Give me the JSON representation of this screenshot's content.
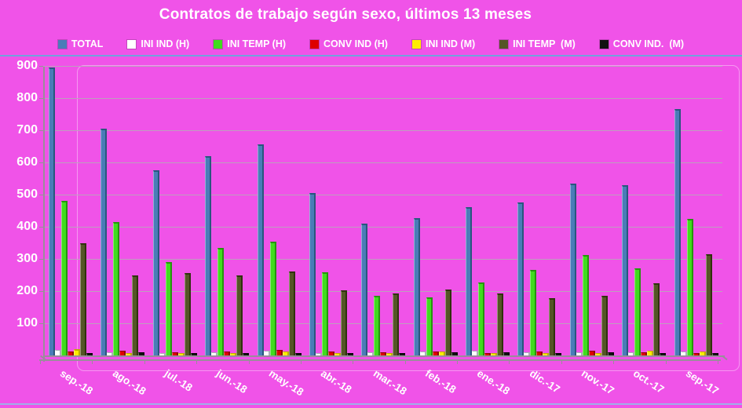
{
  "title": "Contratos de trabajo según sexo, últimos 13 meses",
  "colors": {
    "background": "#F053E8",
    "text": "#FFFFFF",
    "gridline": "#BD9FBD",
    "axis_line": "#9B8C9B",
    "top_rule": "#6FA3DC",
    "bottom_rule": "#9FB0E8"
  },
  "chart_data": {
    "type": "bar",
    "title": "Contratos de trabajo según sexo, últimos 13 meses",
    "legend_position": "top",
    "grid": true,
    "ylim": [
      0,
      900
    ],
    "ytick_step": 100,
    "y_ticks": [
      100,
      200,
      300,
      400,
      500,
      600,
      700,
      800,
      900
    ],
    "categories": [
      "sep.-18",
      "ago.-18",
      "jul.-18",
      "jun.-18",
      "may.-18",
      "abr.-18",
      "mar.-18",
      "feb.-18",
      "ene.-18",
      "dic.-17",
      "nov.-17",
      "oct.-17",
      "sep.-17"
    ],
    "series": [
      {
        "name": "TOTAL",
        "color": "#4A7CB8",
        "edge": "#29567E",
        "values": [
          895,
          705,
          575,
          620,
          655,
          505,
          410,
          428,
          460,
          475,
          533,
          530,
          765
        ]
      },
      {
        "name": "INI IND (H)",
        "color": "#FFFFFF",
        "edge": "#ABABB8",
        "values": [
          16,
          10,
          8,
          10,
          14,
          8,
          10,
          12,
          14,
          10,
          10,
          10,
          12
        ]
      },
      {
        "name": "INI TEMP (H)",
        "color": "#41DC1E",
        "edge": "#27930F",
        "values": [
          480,
          415,
          290,
          335,
          353,
          258,
          185,
          180,
          228,
          267,
          312,
          270,
          424
        ]
      },
      {
        "name": "CONV IND (H)",
        "color": "#DE0000",
        "edge": "#8F0000",
        "values": [
          13,
          15,
          10,
          12,
          18,
          12,
          10,
          13,
          8,
          12,
          15,
          10,
          8
        ]
      },
      {
        "name": "INI IND (M)",
        "color": "#FFEC00",
        "edge": "#C1A900",
        "values": [
          20,
          8,
          8,
          8,
          12,
          8,
          8,
          12,
          8,
          8,
          8,
          15,
          12
        ]
      },
      {
        "name": "INI TEMP  (M)",
        "color": "#555526",
        "edge": "#31310E",
        "values": [
          350,
          250,
          257,
          250,
          262,
          202,
          193,
          205,
          192,
          178,
          186,
          225,
          315
        ]
      },
      {
        "name": "CONV IND.  (M)",
        "color": "#111111",
        "edge": "#000000",
        "values": [
          8,
          10,
          8,
          8,
          8,
          8,
          8,
          10,
          10,
          8,
          10,
          8,
          8
        ]
      }
    ]
  }
}
